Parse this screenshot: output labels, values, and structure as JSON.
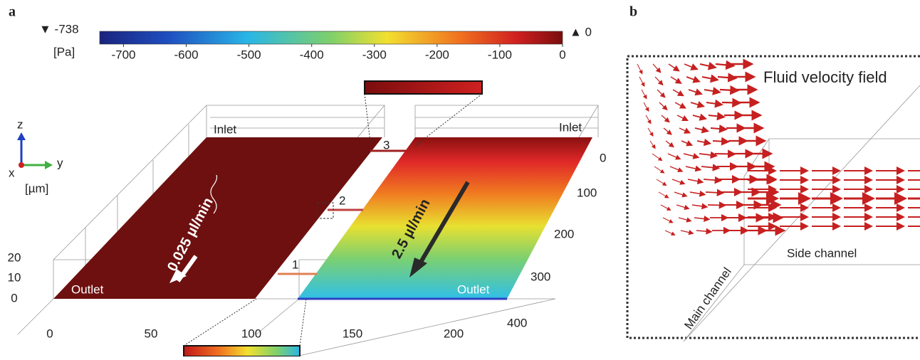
{
  "panel_a": {
    "label": "a",
    "colorbar": {
      "min": {
        "value": -738,
        "label": "▼ -738"
      },
      "max": {
        "value": 0,
        "label": "▲ 0"
      },
      "unit": "[Pa]",
      "ticks": [
        -700,
        -600,
        -500,
        -400,
        -300,
        -200,
        -100,
        0
      ]
    },
    "axes": {
      "z": "z",
      "x": "x",
      "y": "y",
      "unit": "[µm]",
      "z_ticks": [
        20,
        10,
        0
      ],
      "x_ticks": [
        0,
        50,
        100,
        150,
        200
      ],
      "y_ticks": [
        0,
        100,
        200,
        300,
        400
      ]
    },
    "left_channel": {
      "inlet": "Inlet",
      "outlet": "Outlet",
      "flow": "0.025 µl/min"
    },
    "right_channel": {
      "inlet": "Inlet",
      "outlet": "Outlet",
      "flow": "2.5 µl/min"
    },
    "connectors": [
      "1",
      "2",
      "3"
    ]
  },
  "panel_b": {
    "label": "b",
    "title": "Fluid velocity field",
    "side": "Side channel",
    "main": "Main channel"
  }
}
